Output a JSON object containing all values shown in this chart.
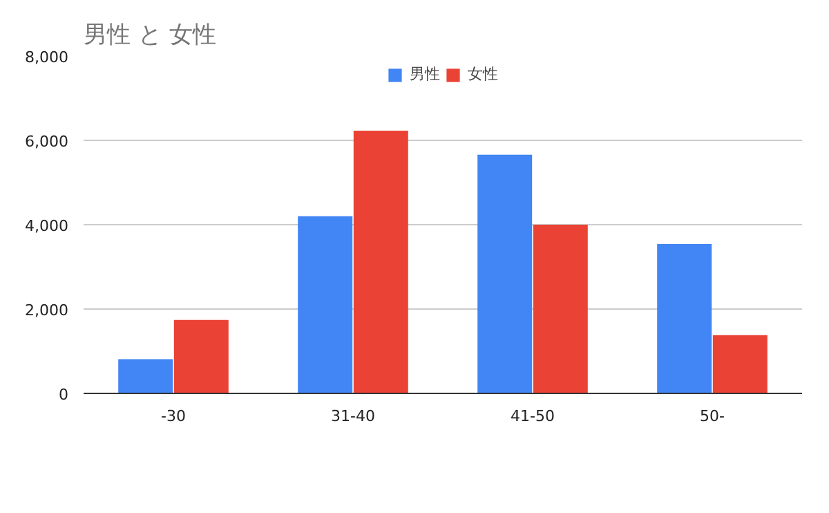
{
  "chart_data": {
    "type": "bar",
    "title": "男性 と 女性",
    "categories": [
      "-30",
      "31-40",
      "41-50",
      "50-"
    ],
    "series": [
      {
        "name": "男性",
        "color": "#4285f4",
        "values": [
          810,
          4200,
          5660,
          3540
        ]
      },
      {
        "name": "女性",
        "color": "#ea4335",
        "values": [
          1740,
          6230,
          4000,
          1380
        ]
      }
    ],
    "ylim": [
      0,
      8000
    ],
    "yticks": [
      {
        "value": 0,
        "label": "0"
      },
      {
        "value": 2000,
        "label": "2,000"
      },
      {
        "value": 4000,
        "label": "4,000"
      },
      {
        "value": 6000,
        "label": "6,000"
      },
      {
        "value": 8000,
        "label": "8,000"
      }
    ],
    "grid": "y",
    "legend": "top"
  }
}
